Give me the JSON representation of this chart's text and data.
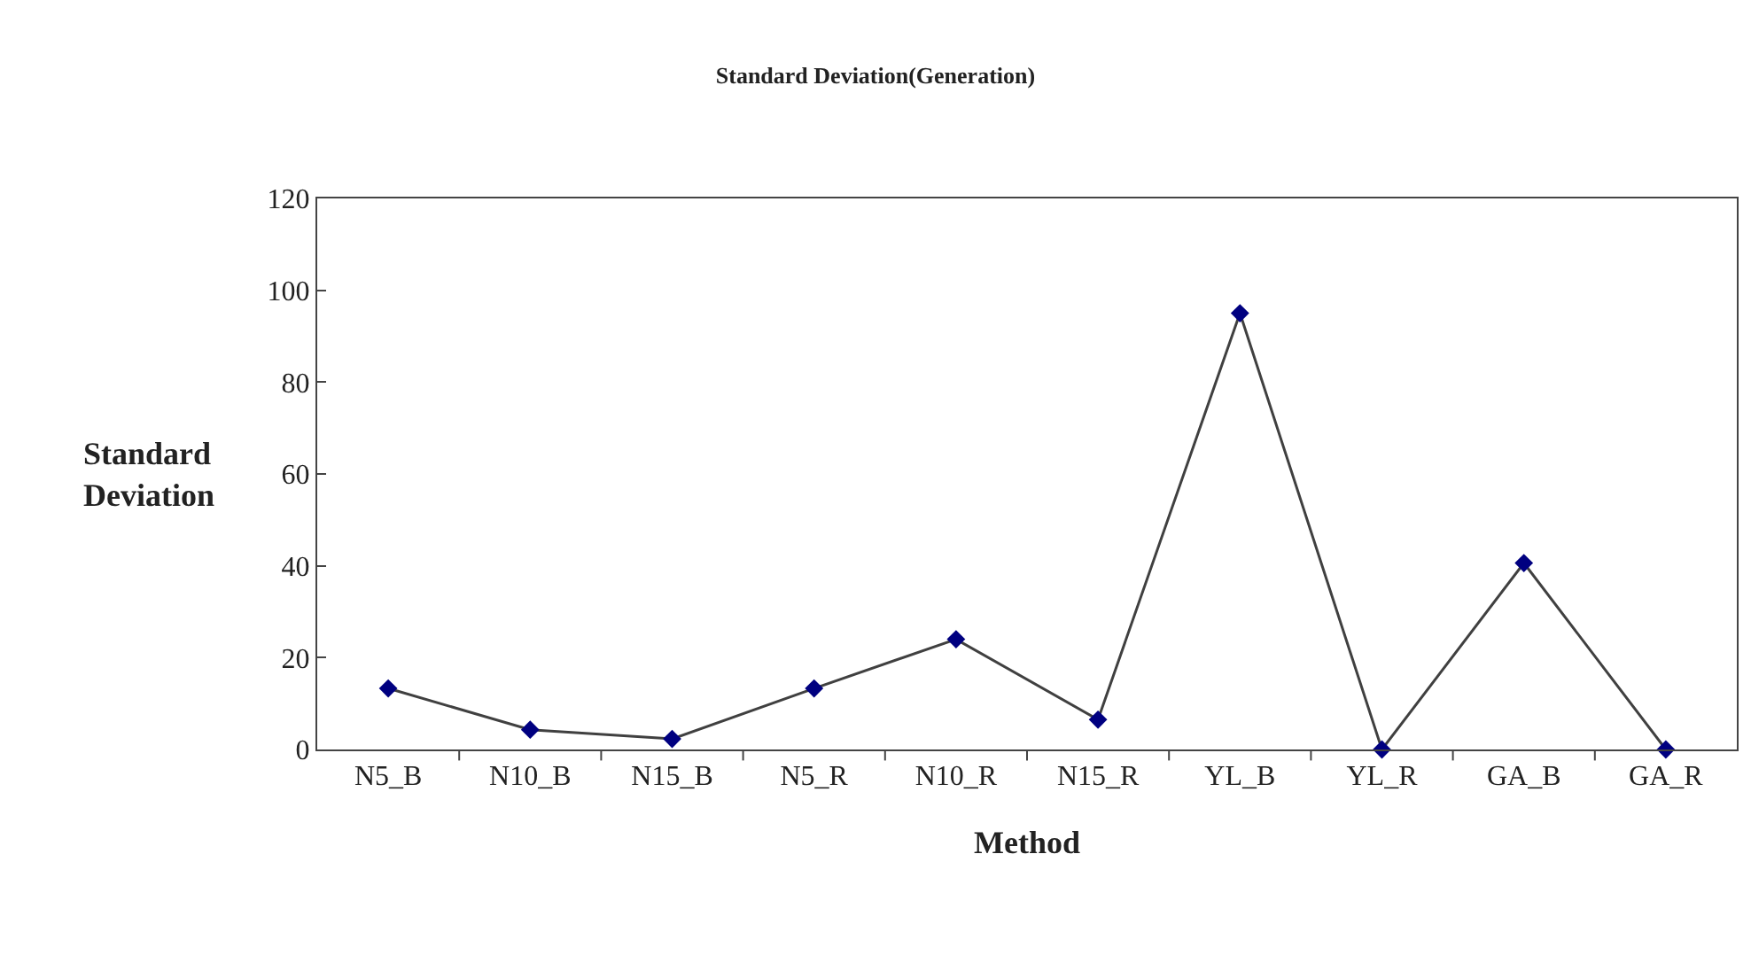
{
  "chart_data": {
    "type": "line",
    "title": "Standard Deviation(Generation)",
    "xlabel": "Method",
    "ylabel": "Standard Deviation",
    "categories": [
      "N5_B",
      "N10_B",
      "N15_B",
      "N5_R",
      "N10_R",
      "N15_R",
      "YL_B",
      "YL_R",
      "GA_B",
      "GA_R"
    ],
    "series": [
      {
        "color": "#000080",
        "values": [
          13.3,
          4.3,
          2.3,
          13.3,
          24.0,
          6.5,
          95.0,
          0,
          40.6,
          0
        ]
      }
    ],
    "ylim": [
      0,
      120
    ],
    "yticks": [
      0,
      20,
      40,
      60,
      80,
      100,
      120
    ],
    "legend": false,
    "marker": "diamond",
    "line_style": "solid"
  }
}
